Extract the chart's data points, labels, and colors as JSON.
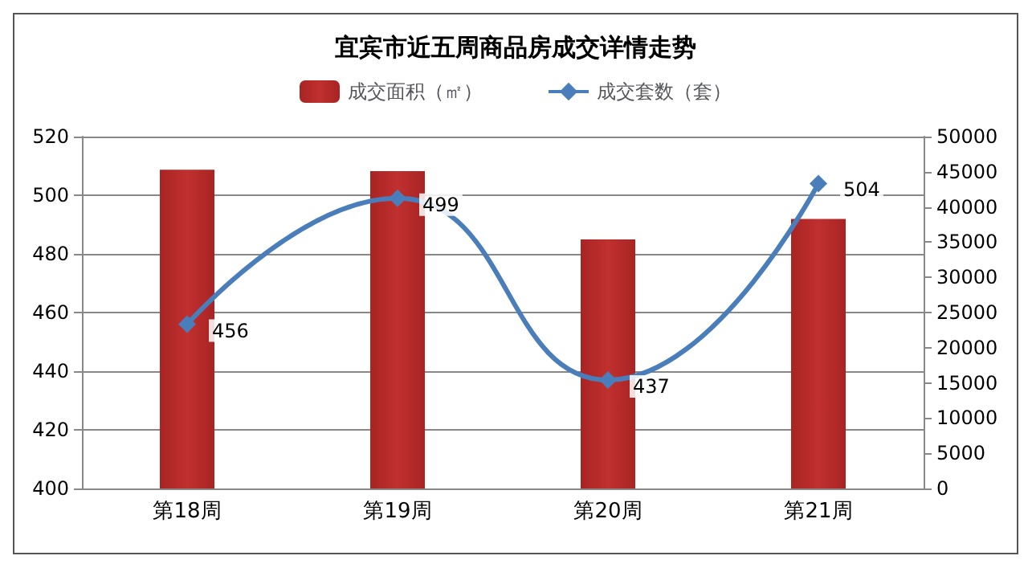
{
  "chart_data": {
    "type": "bar",
    "title": "宜宾市近五周商品房成交详情走势",
    "categories": [
      "第18周",
      "第19周",
      "第20周",
      "第21周"
    ],
    "series": [
      {
        "name": "成交面积（㎡）",
        "axis": "y2",
        "color": "#c0302f",
        "values": [
          45300,
          45100,
          35400,
          38300
        ]
      },
      {
        "name": "成交套数（套）",
        "type": "line",
        "color": "#4a7ebb",
        "values": [
          456,
          499,
          437,
          504
        ],
        "data_labels": true,
        "marker": "diamond"
      }
    ],
    "ylim": [
      400,
      520
    ],
    "yticks": [
      400,
      420,
      440,
      460,
      480,
      500,
      520
    ],
    "y2lim": [
      0,
      50000
    ],
    "y2ticks": [
      0,
      5000,
      10000,
      15000,
      20000,
      25000,
      30000,
      35000,
      40000,
      45000,
      50000
    ],
    "grid": "y",
    "legend": "top"
  }
}
